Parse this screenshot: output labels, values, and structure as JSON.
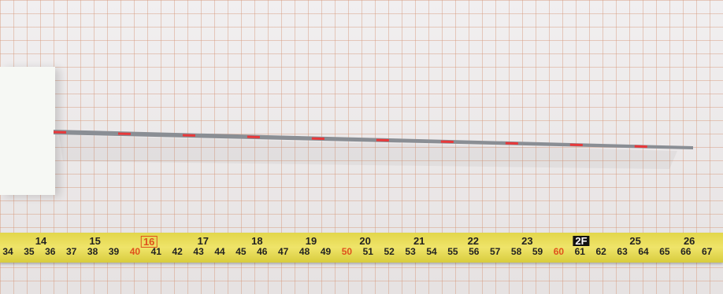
{
  "tape": {
    "inch_labels": [
      "14",
      "15",
      "16",
      "17",
      "18",
      "19",
      "20",
      "21",
      "22",
      "23",
      "2F",
      "25",
      "26"
    ],
    "cm_labels": [
      "34",
      "35",
      "36",
      "37",
      "38",
      "39",
      "40",
      "41",
      "42",
      "43",
      "44",
      "45",
      "46",
      "47",
      "48",
      "49",
      "50",
      "51",
      "52",
      "53",
      "54",
      "55",
      "56",
      "57",
      "58",
      "59",
      "60",
      "61",
      "62",
      "63",
      "64",
      "65",
      "66",
      "67"
    ]
  }
}
